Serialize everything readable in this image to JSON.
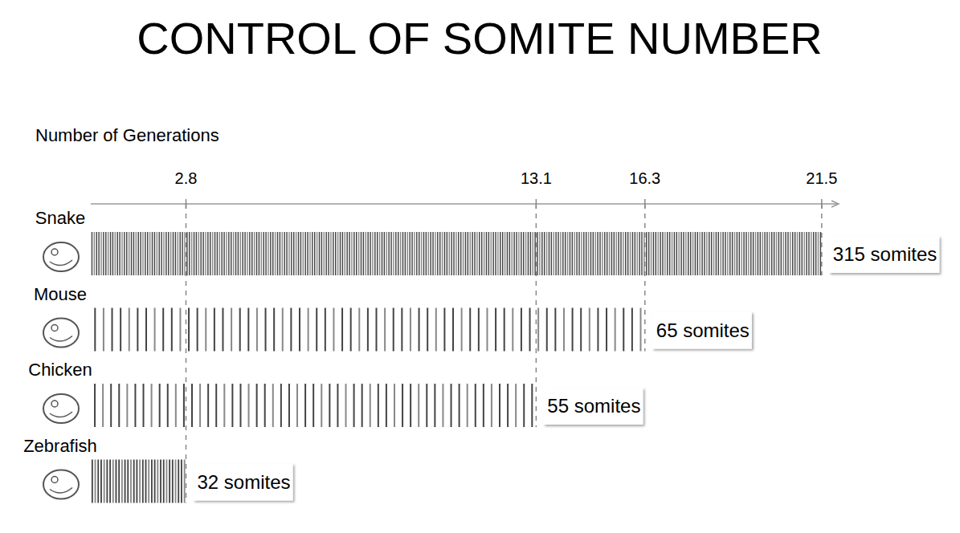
{
  "chart_data": {
    "type": "bar",
    "orientation": "horizontal",
    "title": "CONTROL OF SOMITE NUMBER",
    "xlabel": "Number of Generations",
    "categories": [
      "Snake",
      "Mouse",
      "Chicken",
      "Zebrafish"
    ],
    "values": [
      21.5,
      16.3,
      13.1,
      2.8
    ],
    "somites": [
      315,
      65,
      55,
      32
    ],
    "somite_labels": [
      "315 somites",
      "65 somites",
      "55 somites",
      "32 somites"
    ],
    "xlim": [
      0,
      22
    ],
    "xticks": [
      2.8,
      13.1,
      16.3,
      21.5
    ],
    "color": "#444444",
    "grid": true
  }
}
